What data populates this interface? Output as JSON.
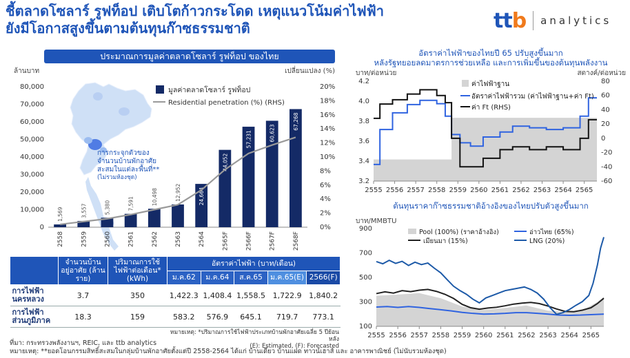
{
  "headline": [
    "ชี้ตลาดโซลาร์ รูฟท็อป เติบโตก้าวกระโดด เหตุแนวโน้มค่าไฟฟ้า",
    "ยังมีโอกาสสูงขึ้นตามต้นทุนก๊าซธรรมชาติ"
  ],
  "logo": {
    "mark": "ttb",
    "word": "analytics",
    "colors": {
      "t": "#1f55b8",
      "b": "#f07a1c"
    }
  },
  "left_banner": "ประมาณการมูลค่าตลาดโซลาร์ รูฟท็อป ของไทย",
  "map_note": [
    "การกระจุกตัวของ",
    "จำนวนบ้านพักอาศัย",
    "สะสมในแต่ละพื้นที่**",
    "(ไม่รวมห้องชุด)"
  ],
  "chart_data": [
    {
      "type": "bar",
      "ylabel": "ล้านบาท",
      "y2label": "เปลี่ยนแปลง (%)",
      "ylim": [
        0,
        80000
      ],
      "y2lim": [
        0,
        20
      ],
      "y_ticks": [
        "0",
        "10,000",
        "20,000",
        "30,000",
        "40,000",
        "50,000",
        "60,000",
        "70,000",
        "80,000"
      ],
      "y2_ticks": [
        "0%",
        "2%",
        "4%",
        "6%",
        "8%",
        "10%",
        "12%",
        "14%",
        "16%",
        "18%",
        "20%"
      ],
      "categories": [
        "2558",
        "2559",
        "2560",
        "2561",
        "2562",
        "2563",
        "2564",
        "2565F",
        "2566F",
        "2567F",
        "2568F"
      ],
      "series": [
        {
          "name": "มูลค่าตลาดโซลาร์ รูฟท็อป",
          "values": [
            1569,
            3557,
            5380,
            7591,
            10498,
            12952,
            24664,
            44052,
            57231,
            60623,
            67268
          ],
          "labels": [
            "1,569",
            "3,557",
            "5,380",
            "7,591",
            "10,498",
            "12,952",
            "24,664",
            "44,052",
            "57,231",
            "60,623",
            "67,268"
          ],
          "color": "#142a66"
        },
        {
          "name": "Residential penetration (%) (RHS)",
          "axis": "right",
          "values": [
            0.4,
            0.8,
            1.2,
            1.8,
            2.5,
            3.2,
            5.3,
            8.2,
            10.5,
            11.7,
            12.8
          ],
          "color": "#9a9a9a"
        }
      ],
      "legend": "top-right"
    },
    {
      "type": "line",
      "title": [
        "อัตราค่าไฟฟ้าของไทยปี 65 ปรับสูงขึ้นมาก",
        "หลังรัฐทยอยลดมาตรการช่วยเหลือ และการเพิ่มขึ้นของต้นทุนพลังงาน"
      ],
      "ylabel": "บาท/ต่อหน่วย",
      "y2label": "สตางค์/ต่อหน่วย",
      "ylim": [
        3.0,
        4.2
      ],
      "y2lim": [
        -60,
        80
      ],
      "y_ticks": [
        "3.2",
        "3.4",
        "3.6",
        "3.8",
        "4.0",
        "4.2"
      ],
      "y2_ticks": [
        "-60",
        "-40",
        "-20",
        "0",
        "20",
        "40",
        "60",
        "80"
      ],
      "x_ticks": [
        "2555",
        "2556",
        "2557",
        "2558",
        "2559",
        "2560",
        "2561",
        "2562",
        "2563",
        "2564",
        "2565"
      ],
      "x_range": [
        2555,
        2565.6
      ],
      "series": [
        {
          "name": "ค่าไฟฟ้าฐาน",
          "type": "area",
          "color": "#d4d4d4",
          "points": [
            [
              2555,
              3.26
            ],
            [
              2558.7,
              3.26
            ],
            [
              2558.7,
              3.76
            ],
            [
              2565.6,
              3.76
            ]
          ]
        },
        {
          "name": "อัตราค่าไฟฟ้ารวม (ค่าไฟฟ้าฐาน+ค่า Ft)",
          "color": "#2f63e0",
          "points": [
            [
              2555,
              3.2
            ],
            [
              2555.3,
              3.2
            ],
            [
              2555.3,
              3.62
            ],
            [
              2555.9,
              3.62
            ],
            [
              2555.9,
              3.82
            ],
            [
              2556.6,
              3.82
            ],
            [
              2556.6,
              3.92
            ],
            [
              2557.2,
              3.92
            ],
            [
              2557.2,
              3.97
            ],
            [
              2558.0,
              3.97
            ],
            [
              2558.0,
              3.93
            ],
            [
              2558.4,
              3.93
            ],
            [
              2558.4,
              3.78
            ],
            [
              2558.7,
              3.78
            ],
            [
              2558.7,
              3.56
            ],
            [
              2559.1,
              3.56
            ],
            [
              2559.1,
              3.46
            ],
            [
              2559.6,
              3.46
            ],
            [
              2559.6,
              3.42
            ],
            [
              2560.2,
              3.42
            ],
            [
              2560.2,
              3.53
            ],
            [
              2561.0,
              3.53
            ],
            [
              2561.0,
              3.59
            ],
            [
              2561.6,
              3.59
            ],
            [
              2561.6,
              3.66
            ],
            [
              2562.4,
              3.66
            ],
            [
              2562.4,
              3.64
            ],
            [
              2563.2,
              3.64
            ],
            [
              2563.2,
              3.62
            ],
            [
              2564.0,
              3.62
            ],
            [
              2564.0,
              3.64
            ],
            [
              2564.8,
              3.64
            ],
            [
              2564.8,
              3.78
            ],
            [
              2565.2,
              3.78
            ],
            [
              2565.2,
              4.0
            ],
            [
              2565.6,
              4.0
            ]
          ]
        },
        {
          "name": "ค่า Ft (RHS)",
          "axis": "right",
          "color": "#111111",
          "points": [
            [
              2555,
              28
            ],
            [
              2555.3,
              28
            ],
            [
              2555.3,
              48
            ],
            [
              2555.9,
              48
            ],
            [
              2555.9,
              54
            ],
            [
              2556.6,
              54
            ],
            [
              2556.6,
              62
            ],
            [
              2557.2,
              62
            ],
            [
              2557.2,
              68
            ],
            [
              2558.0,
              68
            ],
            [
              2558.0,
              60
            ],
            [
              2558.4,
              60
            ],
            [
              2558.4,
              50
            ],
            [
              2558.7,
              50
            ],
            [
              2558.7,
              0
            ],
            [
              2559.1,
              0
            ],
            [
              2559.1,
              -40
            ],
            [
              2560.2,
              -40
            ],
            [
              2560.2,
              -28
            ],
            [
              2561.0,
              -28
            ],
            [
              2561.0,
              -16
            ],
            [
              2561.6,
              -16
            ],
            [
              2561.6,
              -12
            ],
            [
              2562.4,
              -12
            ],
            [
              2562.4,
              -16
            ],
            [
              2563.2,
              -16
            ],
            [
              2563.2,
              -12
            ],
            [
              2564.0,
              -12
            ],
            [
              2564.0,
              -16
            ],
            [
              2564.8,
              -16
            ],
            [
              2564.8,
              0
            ],
            [
              2565.2,
              0
            ],
            [
              2565.2,
              26
            ],
            [
              2565.6,
              26
            ]
          ]
        }
      ]
    },
    {
      "type": "line",
      "title": "ต้นทุนราคาก๊าซธรรมชาติอ้างอิงของไทยปรับตัวสูงขึ้นมาก",
      "ylabel": "บาท/MMBTU",
      "ylim": [
        100,
        900
      ],
      "y_ticks": [
        "100",
        "300",
        "500",
        "700",
        "900"
      ],
      "x_ticks": [
        "2555",
        "2556",
        "2557",
        "2558",
        "2559",
        "2560",
        "2561",
        "2562",
        "2563",
        "2564",
        "2565"
      ],
      "x_range": [
        2555,
        2565.6
      ],
      "series": [
        {
          "name": "Pool (100%) (ราคาอ้างอิง)",
          "type": "area",
          "color": "#d4d4d4",
          "points": [
            [
              2555,
              350
            ],
            [
              2556,
              360
            ],
            [
              2557,
              372
            ],
            [
              2558,
              330
            ],
            [
              2559,
              262
            ],
            [
              2560,
              235
            ],
            [
              2561,
              250
            ],
            [
              2562,
              270
            ],
            [
              2563,
              228
            ],
            [
              2564,
              215
            ],
            [
              2564.8,
              250
            ],
            [
              2565.3,
              300
            ],
            [
              2565.6,
              340
            ]
          ]
        },
        {
          "name": "อ่าวไทย (65%)",
          "color": "#2f63e0",
          "points": [
            [
              2555,
              258
            ],
            [
              2555.5,
              262
            ],
            [
              2556,
              255
            ],
            [
              2556.5,
              262
            ],
            [
              2557,
              255
            ],
            [
              2557.5,
              245
            ],
            [
              2558,
              236
            ],
            [
              2558.5,
              226
            ],
            [
              2559,
              214
            ],
            [
              2559.5,
              206
            ],
            [
              2560,
              200
            ],
            [
              2560.5,
              202
            ],
            [
              2561,
              206
            ],
            [
              2561.5,
              212
            ],
            [
              2562,
              212
            ],
            [
              2562.5,
              206
            ],
            [
              2563,
              200
            ],
            [
              2563.5,
              192
            ],
            [
              2564,
              190
            ],
            [
              2564.5,
              192
            ],
            [
              2565,
              196
            ],
            [
              2565.6,
              200
            ]
          ]
        },
        {
          "name": "เมียนมา (15%)",
          "color": "#222222",
          "points": [
            [
              2555,
              368
            ],
            [
              2555.4,
              382
            ],
            [
              2555.8,
              372
            ],
            [
              2556.2,
              392
            ],
            [
              2556.6,
              384
            ],
            [
              2557,
              396
            ],
            [
              2557.4,
              402
            ],
            [
              2557.8,
              386
            ],
            [
              2558.2,
              362
            ],
            [
              2558.6,
              328
            ],
            [
              2559,
              280
            ],
            [
              2559.4,
              252
            ],
            [
              2559.8,
              240
            ],
            [
              2560.2,
              250
            ],
            [
              2560.6,
              256
            ],
            [
              2561,
              268
            ],
            [
              2561.4,
              282
            ],
            [
              2561.8,
              290
            ],
            [
              2562.2,
              296
            ],
            [
              2562.6,
              286
            ],
            [
              2563,
              266
            ],
            [
              2563.4,
              242
            ],
            [
              2563.8,
              222
            ],
            [
              2564.2,
              220
            ],
            [
              2564.6,
              232
            ],
            [
              2565,
              252
            ],
            [
              2565.3,
              286
            ],
            [
              2565.6,
              330
            ]
          ]
        },
        {
          "name": "LNG (20%)",
          "color": "#1d5aa8",
          "points": [
            [
              2555,
              630
            ],
            [
              2555.3,
              612
            ],
            [
              2555.6,
              640
            ],
            [
              2555.9,
              615
            ],
            [
              2556.2,
              632
            ],
            [
              2556.5,
              598
            ],
            [
              2556.8,
              625
            ],
            [
              2557.1,
              605
            ],
            [
              2557.4,
              618
            ],
            [
              2557.7,
              576
            ],
            [
              2558.0,
              538
            ],
            [
              2558.3,
              482
            ],
            [
              2558.6,
              428
            ],
            [
              2558.9,
              392
            ],
            [
              2559.2,
              362
            ],
            [
              2559.5,
              322
            ],
            [
              2559.8,
              292
            ],
            [
              2560.1,
              332
            ],
            [
              2560.4,
              352
            ],
            [
              2560.7,
              372
            ],
            [
              2561.0,
              392
            ],
            [
              2561.3,
              402
            ],
            [
              2561.6,
              412
            ],
            [
              2561.9,
              422
            ],
            [
              2562.2,
              402
            ],
            [
              2562.5,
              372
            ],
            [
              2562.8,
              322
            ],
            [
              2563.1,
              252
            ],
            [
              2563.4,
              198
            ],
            [
              2563.7,
              212
            ],
            [
              2564.0,
              238
            ],
            [
              2564.3,
              272
            ],
            [
              2564.6,
              302
            ],
            [
              2564.9,
              352
            ],
            [
              2565.1,
              452
            ],
            [
              2565.3,
              600
            ],
            [
              2565.45,
              740
            ],
            [
              2565.6,
              830
            ]
          ]
        }
      ]
    }
  ],
  "table": {
    "headers": {
      "c1": "จำนวนบ้าน อยู่อาศัย (ล้านราย)",
      "c2": "ปริมาณการใช้ ไฟฟ้าต่อเดือน* (kWh)",
      "c3": "อัตราค่าไฟฟ้า (บาท/เดือน)",
      "sub": [
        "ม.ค.62",
        "ม.ค.64",
        "ส.ค.65",
        "ม.ค.65(E)",
        "2566(F)"
      ]
    },
    "rows": [
      {
        "label": "การไฟฟ้า นครหลวง",
        "households": "3.7",
        "usage": "350",
        "values": [
          "1,422.3",
          "1,408.4",
          "1,558.5",
          "1,722.9",
          "1,840.2"
        ]
      },
      {
        "label": "การไฟฟ้า ส่วนภูมิภาค",
        "households": "18.3",
        "usage": "159",
        "values": [
          "583.2",
          "576.9",
          "645.1",
          "719.7",
          "773.1"
        ]
      }
    ],
    "note": [
      "หมายเหตุ: *ปริมาณการใช้ไฟฟ้าประเภทบ้านพักอาศัยเฉลี่ย 5 ปีย้อนหลัง",
      "(E): Estimated, (F): Forecasted"
    ]
  },
  "footnotes": [
    "ที่มา: กระทรวงพลังงานฯ, REIC, และ ttb analytics",
    "หมายเหตุ: **ยอดโอนกรรมสิทธิ์สะสมในกลุ่มบ้านพักอาศัยตั้งแต่ปี 2558-2564 ได้แก่ บ้านเดี่ยว บ้านแฝด ทาวน์เฮาส์ และ อาคารพาณิชย์ (ไม่นับรวมห้องชุด)"
  ]
}
